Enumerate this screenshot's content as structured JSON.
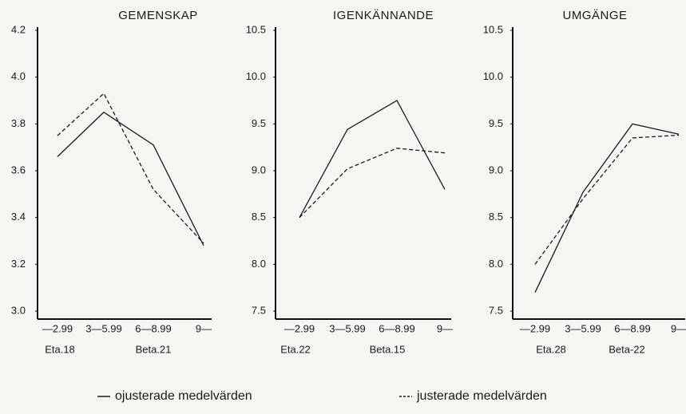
{
  "chart_data": [
    {
      "type": "line",
      "title": "GEMENSKAP",
      "categories": [
        "—2.99",
        "3—5.99",
        "6—8.99",
        "9—"
      ],
      "series": [
        {
          "name": "ojusterade medelvärden",
          "color": "#1a1a1a",
          "dash": false,
          "values": [
            3.66,
            3.85,
            3.71,
            3.28
          ]
        },
        {
          "name": "justerade medelvärden",
          "color": "#1a1a1a",
          "dash": true,
          "values": [
            3.75,
            3.93,
            3.52,
            3.29
          ]
        }
      ],
      "ylim": [
        3.0,
        4.2
      ],
      "yticks": [
        4.2,
        {
          "value": 4,
          "label": "4.0"
        },
        3.8,
        3.6,
        3.4,
        3.2,
        {
          "value": 3,
          "label": "3.0"
        }
      ],
      "annotations": [
        "Eta.18",
        "Beta.21"
      ]
    },
    {
      "type": "line",
      "title": "IGENKÄNNANDE",
      "categories": [
        "—2.99",
        "3—5.99",
        "6—8.99",
        "9—"
      ],
      "series": [
        {
          "name": "ojusterade medelvärden",
          "color": "#1a1a1a",
          "dash": false,
          "values": [
            8.5,
            9.44,
            9.75,
            8.8
          ]
        },
        {
          "name": "justerade medelvärden",
          "color": "#1a1a1a",
          "dash": true,
          "values": [
            8.5,
            9.02,
            9.24,
            9.19
          ]
        }
      ],
      "ylim": [
        7.5,
        10.5
      ],
      "yticks": [
        10.5,
        {
          "value": 10,
          "label": "10.0"
        },
        9.5,
        {
          "value": 9,
          "label": "9.0"
        },
        8.5,
        {
          "value": 8,
          "label": "8.0"
        },
        7.5
      ],
      "annotations": [
        "Eta.22",
        "Beta.15"
      ]
    },
    {
      "type": "line",
      "title": "UMGÄNGE",
      "categories": [
        "—2.99",
        "3—5.99",
        "6—8.99",
        "9—"
      ],
      "series": [
        {
          "name": "ojusterade medelvärden",
          "color": "#1a1a1a",
          "dash": false,
          "values": [
            7.7,
            8.77,
            9.5,
            9.39
          ]
        },
        {
          "name": "justerade medelvärden",
          "color": "#1a1a1a",
          "dash": true,
          "values": [
            8.0,
            8.7,
            9.35,
            9.38
          ]
        }
      ],
      "ylim": [
        7.5,
        10.5
      ],
      "yticks": [
        10.5,
        {
          "value": 10,
          "label": "10.0"
        },
        9.5,
        {
          "value": 9,
          "label": "9.0"
        },
        8.5,
        {
          "value": 8,
          "label": "8.0"
        },
        7.5
      ],
      "annotations": [
        "Eta.28",
        "Beta-22"
      ]
    }
  ]
}
